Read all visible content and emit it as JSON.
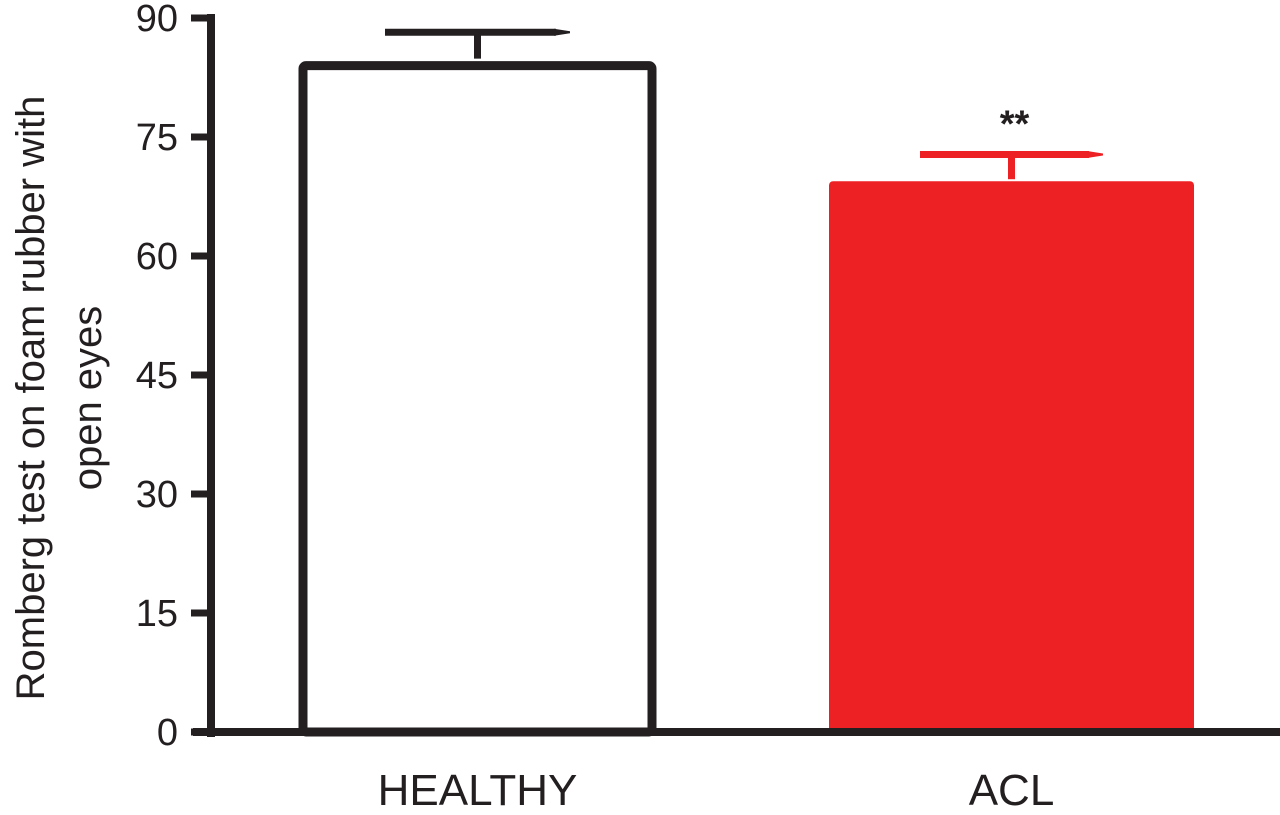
{
  "chart_data": {
    "type": "bar",
    "title": "",
    "xlabel": "",
    "ylabel_lines": [
      "Romberg test on foam rubber with",
      "open eyes"
    ],
    "ylim": [
      0,
      90
    ],
    "yticks": [
      0,
      15,
      30,
      45,
      60,
      75,
      90
    ],
    "grid": false,
    "legend": "none",
    "categories": [
      "HEALTHY",
      "ACL"
    ],
    "values": [
      84.5,
      69.3
    ],
    "error_upper": [
      88.2,
      72.8
    ],
    "bar_fill_colors": [
      "#ffffff",
      "#ed2024"
    ],
    "bar_stroke_colors": [
      "#231f20",
      "#ed2024"
    ],
    "error_colors": [
      "#231f20",
      "#ed2024"
    ],
    "annotations": [
      {
        "category": "ACL",
        "text": "**"
      }
    ],
    "axis_color": "#231f20"
  }
}
